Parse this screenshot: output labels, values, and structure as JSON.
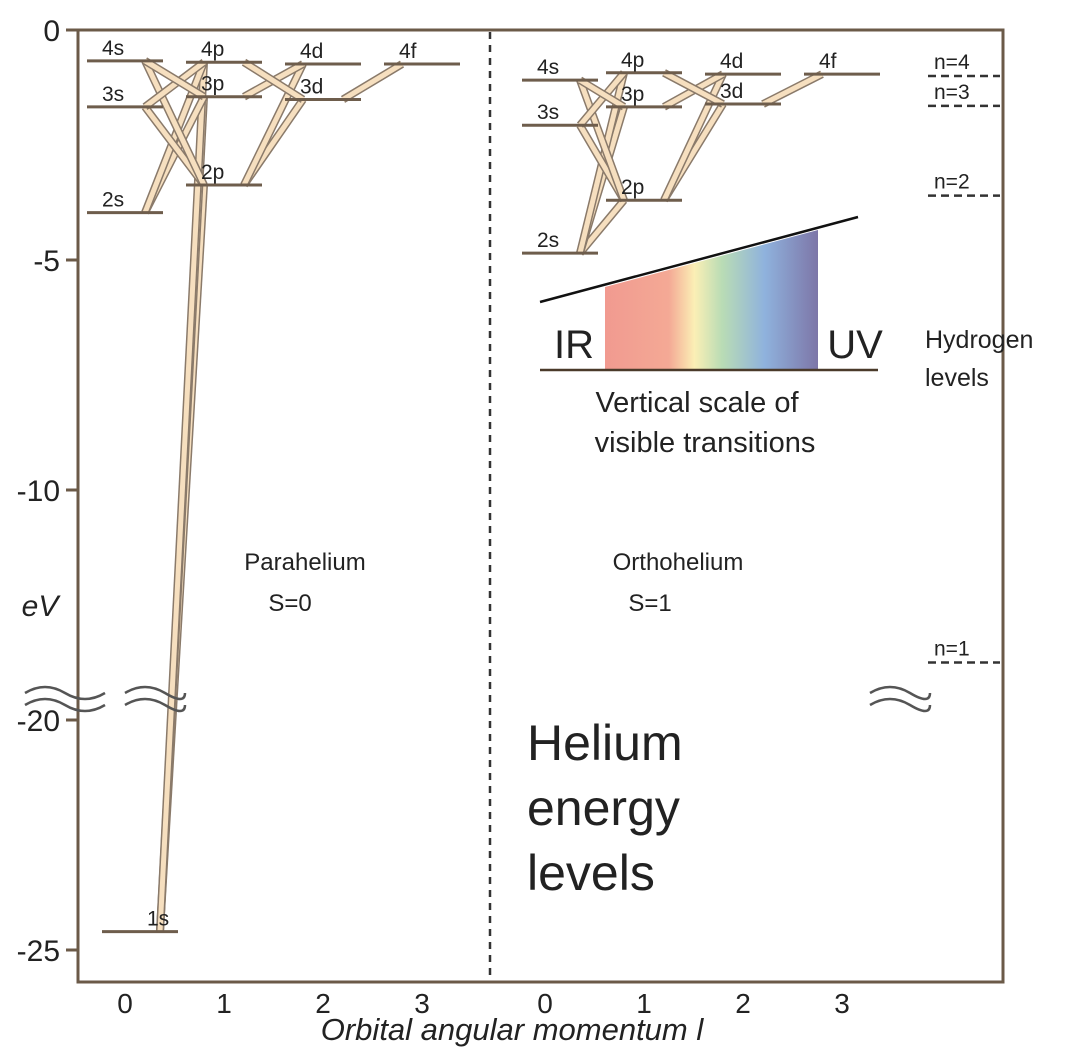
{
  "y_axis": {
    "title": "eV",
    "ticks": [
      0,
      -5,
      -10,
      -20,
      -25
    ]
  },
  "x_axis": {
    "title": "Orbital angular momentum l",
    "parahelium_ticks": [
      0,
      1,
      2,
      3
    ],
    "orthohelium_ticks": [
      0,
      1,
      2,
      3
    ]
  },
  "parahelium": {
    "name": "Parahelium",
    "spin": "S=0",
    "levels": [
      {
        "label": "1s",
        "energy": -24.6
      },
      {
        "label": "2s",
        "energy": -3.97
      },
      {
        "label": "2p",
        "energy": -3.37
      },
      {
        "label": "3s",
        "energy": -1.67
      },
      {
        "label": "3p",
        "energy": -1.45
      },
      {
        "label": "3d",
        "energy": -1.51
      },
      {
        "label": "4s",
        "energy": -0.67
      },
      {
        "label": "4p",
        "energy": -0.7
      },
      {
        "label": "4d",
        "energy": -0.74
      },
      {
        "label": "4f",
        "energy": -0.74
      }
    ]
  },
  "orthohelium": {
    "name": "Orthohelium",
    "spin": "S=1",
    "levels": [
      {
        "label": "2s",
        "energy": -4.85
      },
      {
        "label": "2p",
        "energy": -3.7
      },
      {
        "label": "3s",
        "energy": -2.07
      },
      {
        "label": "3p",
        "energy": -1.67
      },
      {
        "label": "3d",
        "energy": -1.61
      },
      {
        "label": "4s",
        "energy": -1.09
      },
      {
        "label": "4p",
        "energy": -0.93
      },
      {
        "label": "4d",
        "energy": -0.96
      },
      {
        "label": "4f",
        "energy": -0.96
      }
    ]
  },
  "hydrogen": {
    "title": [
      "Hydrogen",
      "levels"
    ],
    "levels": [
      {
        "label": "n=4",
        "energy": -1.0
      },
      {
        "label": "n=3",
        "energy": -1.65
      },
      {
        "label": "n=2",
        "energy": -3.6
      },
      {
        "label": "n=1",
        "energy": -17.5
      }
    ]
  },
  "spectrum": {
    "left": "IR",
    "right": "UV",
    "caption": [
      "Vertical scale of",
      "visible transitions"
    ]
  },
  "title": [
    "Helium",
    "energy",
    "levels"
  ]
}
